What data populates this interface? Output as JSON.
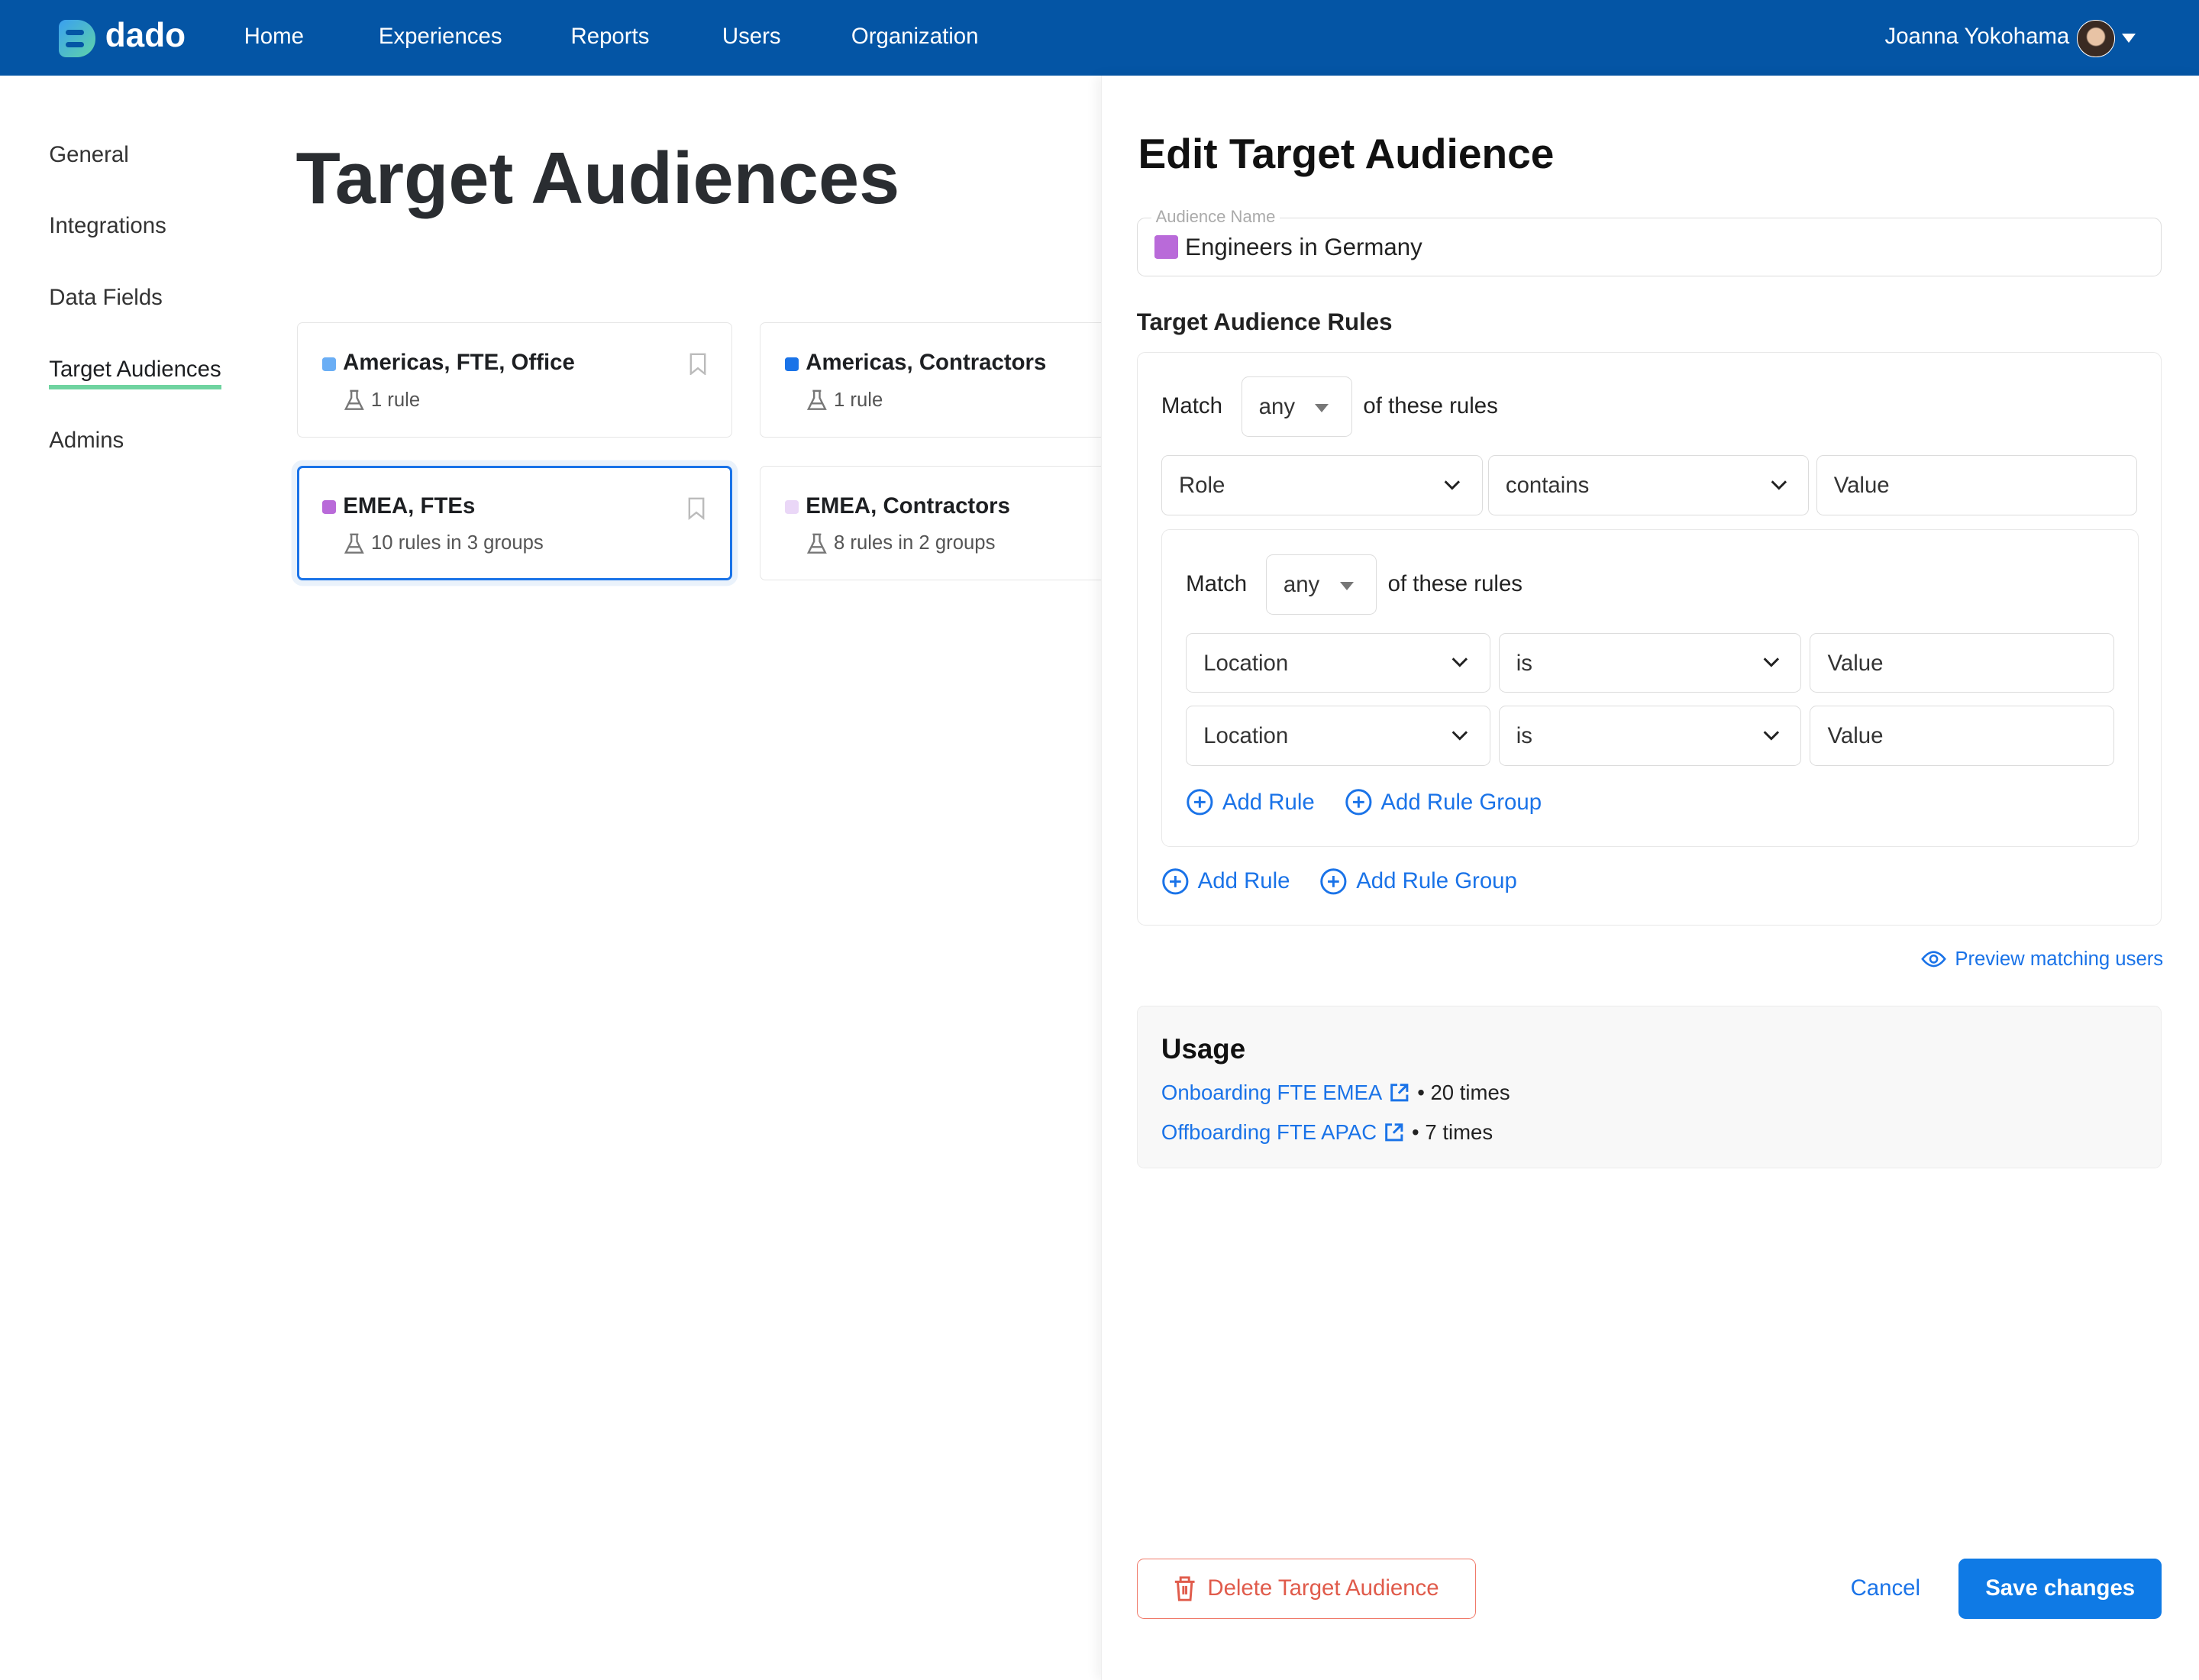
{
  "nav": {
    "brand": "dado",
    "items": [
      "Home",
      "Experiences",
      "Reports",
      "Users",
      "Organization"
    ],
    "user_name": "Joanna Yokohama"
  },
  "sidebar": {
    "items": [
      {
        "label": "General",
        "active": false
      },
      {
        "label": "Integrations",
        "active": false
      },
      {
        "label": "Data Fields",
        "active": false
      },
      {
        "label": "Target Audiences",
        "active": true
      },
      {
        "label": "Admins",
        "active": false
      }
    ]
  },
  "main": {
    "title": "Target Audiences",
    "cards": [
      {
        "name": "Americas, FTE, Office",
        "meta": "1 rule",
        "color": "#6aaef5",
        "selected": false
      },
      {
        "name": "Americas, Contractors",
        "meta": "1 rule",
        "color": "#1a73e8",
        "selected": false
      },
      {
        "name": "EMEA, FTEs",
        "meta": "10 rules in 3 groups",
        "color": "#b96ad9",
        "selected": true
      },
      {
        "name": "EMEA, Contractors",
        "meta": "8 rules in 2 groups",
        "color": "#ead7f7",
        "selected": false
      }
    ]
  },
  "panel": {
    "title": "Edit Target Audience",
    "audience_name_label": "Audience Name",
    "audience_name_value": "Engineers in Germany",
    "audience_color": "#b96ad9",
    "rules_heading": "Target Audience Rules",
    "match_label": "Match",
    "match_value": "any",
    "match_suffix": "of these rules",
    "rule": {
      "field": "Role",
      "operator": "contains",
      "value": "Value"
    },
    "group": {
      "match_label": "Match",
      "match_value": "any",
      "match_suffix": "of these rules",
      "rules": [
        {
          "field": "Location",
          "operator": "is",
          "value": "Value"
        },
        {
          "field": "Location",
          "operator": "is",
          "value": "Value"
        }
      ],
      "add_rule": "Add Rule",
      "add_group": "Add Rule Group"
    },
    "add_rule": "Add Rule",
    "add_group": "Add Rule Group",
    "preview": "Preview matching users",
    "usage": {
      "heading": "Usage",
      "items": [
        {
          "name": "Onboarding FTE EMEA",
          "count": "• 20 times"
        },
        {
          "name": "Offboarding FTE APAC",
          "count": "• 7 times"
        }
      ]
    },
    "delete": "Delete Target Audience",
    "cancel": "Cancel",
    "save": "Save changes"
  },
  "colors": {
    "nav": "#0455a5",
    "primary": "#0f7ae5",
    "danger": "#e05b4b",
    "active_underline": "#6fd3a0"
  }
}
